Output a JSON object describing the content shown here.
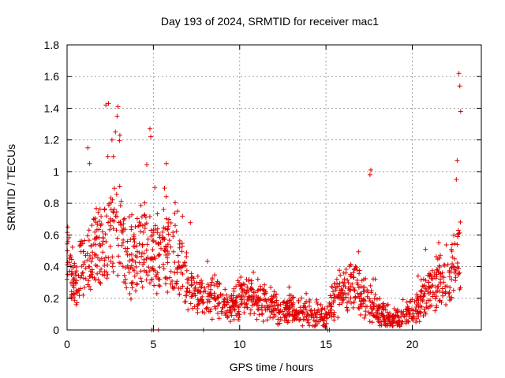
{
  "chart_data": {
    "type": "scatter",
    "title": "Day 193 of 2024, SRMTID for receiver mac1",
    "xlabel": "GPS time / hours",
    "ylabel": "SRMTID / TECUs",
    "xlim": [
      0,
      24
    ],
    "ylim": [
      0,
      1.8
    ],
    "xticks": [
      0,
      5,
      10,
      15,
      20
    ],
    "yticks": [
      0,
      0.2,
      0.4,
      0.6,
      0.8,
      1,
      1.2,
      1.4,
      1.6,
      1.8
    ],
    "ytick_labels": [
      "0",
      "0.2",
      "0.4",
      "0.6",
      "0.8",
      "1",
      "1.2",
      "1.4",
      "1.6",
      "1.8"
    ],
    "grid": true,
    "marker": "+",
    "series_color": "#e00000",
    "envelope": {
      "description": "approximate median SRMTID trend (TECU) vs GPS hour",
      "x": [
        0,
        0.3,
        0.6,
        1.0,
        1.5,
        2.0,
        2.5,
        3.0,
        3.5,
        4.0,
        4.5,
        5.0,
        5.5,
        6.0,
        6.5,
        7.0,
        7.5,
        8.0,
        8.5,
        9.0,
        9.5,
        10.0,
        10.5,
        11.0,
        11.5,
        12.0,
        12.5,
        13.0,
        13.5,
        14.0,
        14.5,
        15.0,
        15.5,
        16.0,
        16.5,
        17.0,
        17.5,
        18.0,
        18.5,
        19.0,
        19.5,
        20.0,
        20.5,
        21.0,
        21.5,
        22.0,
        22.5,
        22.8
      ],
      "y": [
        0.45,
        0.28,
        0.32,
        0.45,
        0.5,
        0.55,
        0.6,
        0.65,
        0.4,
        0.45,
        0.55,
        0.5,
        0.45,
        0.5,
        0.4,
        0.3,
        0.25,
        0.18,
        0.22,
        0.17,
        0.14,
        0.2,
        0.2,
        0.16,
        0.18,
        0.13,
        0.12,
        0.12,
        0.11,
        0.12,
        0.1,
        0.08,
        0.2,
        0.24,
        0.28,
        0.24,
        0.2,
        0.12,
        0.08,
        0.06,
        0.08,
        0.1,
        0.18,
        0.25,
        0.3,
        0.32,
        0.4,
        0.5
      ]
    },
    "peaks": [
      {
        "x": 1.2,
        "y": 1.15
      },
      {
        "x": 1.3,
        "y": 1.05
      },
      {
        "x": 2.25,
        "y": 1.42
      },
      {
        "x": 2.4,
        "y": 1.43
      },
      {
        "x": 2.95,
        "y": 1.41
      },
      {
        "x": 2.9,
        "y": 1.35
      },
      {
        "x": 4.8,
        "y": 1.27
      },
      {
        "x": 4.85,
        "y": 1.22
      },
      {
        "x": 5.75,
        "y": 1.05
      },
      {
        "x": 17.6,
        "y": 1.01
      },
      {
        "x": 17.55,
        "y": 0.98
      },
      {
        "x": 22.7,
        "y": 1.62
      },
      {
        "x": 22.75,
        "y": 1.54
      },
      {
        "x": 22.8,
        "y": 1.38
      },
      {
        "x": 22.6,
        "y": 1.07
      },
      {
        "x": 22.55,
        "y": 0.95
      },
      {
        "x": 2.6,
        "y": 1.2
      },
      {
        "x": 2.8,
        "y": 1.25
      }
    ],
    "zero_points": [
      {
        "x": 4.9,
        "y": 0
      },
      {
        "x": 5.0,
        "y": 0
      },
      {
        "x": 5.3,
        "y": 0
      },
      {
        "x": 7.9,
        "y": 0
      },
      {
        "x": 15.1,
        "y": 0
      },
      {
        "x": 15.2,
        "y": 0
      }
    ]
  }
}
